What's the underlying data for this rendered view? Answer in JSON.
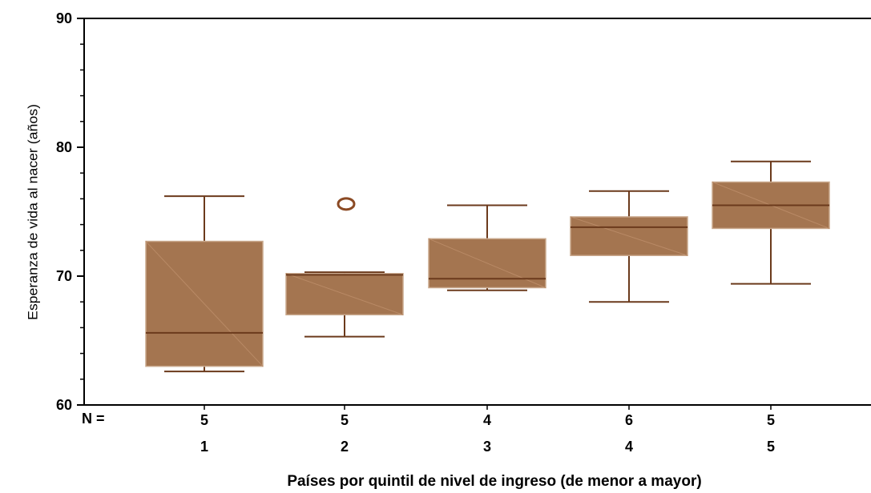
{
  "chart_data": {
    "type": "boxplot",
    "xlabel": "Países por quintil de nivel de ingreso (de menor a mayor)",
    "ylabel": "Esperanza de vida al nacer (años)",
    "ylim": [
      60,
      90
    ],
    "yticks": [
      60,
      70,
      80,
      90
    ],
    "n_label": "N =",
    "categories": [
      "1",
      "2",
      "3",
      "4",
      "5"
    ],
    "n": [
      "5",
      "5",
      "4",
      "6",
      "5"
    ],
    "boxes": [
      {
        "category": "1",
        "whisker_low": 62.6,
        "q1": 63.0,
        "median": 65.6,
        "q3": 72.7,
        "whisker_high": 76.2,
        "outliers": []
      },
      {
        "category": "2",
        "whisker_low": 65.3,
        "q1": 67.0,
        "median": 70.1,
        "q3": 70.2,
        "whisker_high": 70.3,
        "outliers": [
          75.6
        ]
      },
      {
        "category": "3",
        "whisker_low": 68.9,
        "q1": 69.1,
        "median": 69.8,
        "q3": 72.9,
        "whisker_high": 75.5,
        "outliers": []
      },
      {
        "category": "4",
        "whisker_low": 68.0,
        "q1": 71.6,
        "median": 73.8,
        "q3": 74.6,
        "whisker_high": 76.6,
        "outliers": []
      },
      {
        "category": "5",
        "whisker_low": 69.4,
        "q1": 73.7,
        "median": 75.5,
        "q3": 77.3,
        "whisker_high": 78.9,
        "outliers": []
      }
    ],
    "colors": {
      "box_fill": "#a47550",
      "line": "#6b3a1c",
      "outlier": "#8b4a24"
    }
  }
}
